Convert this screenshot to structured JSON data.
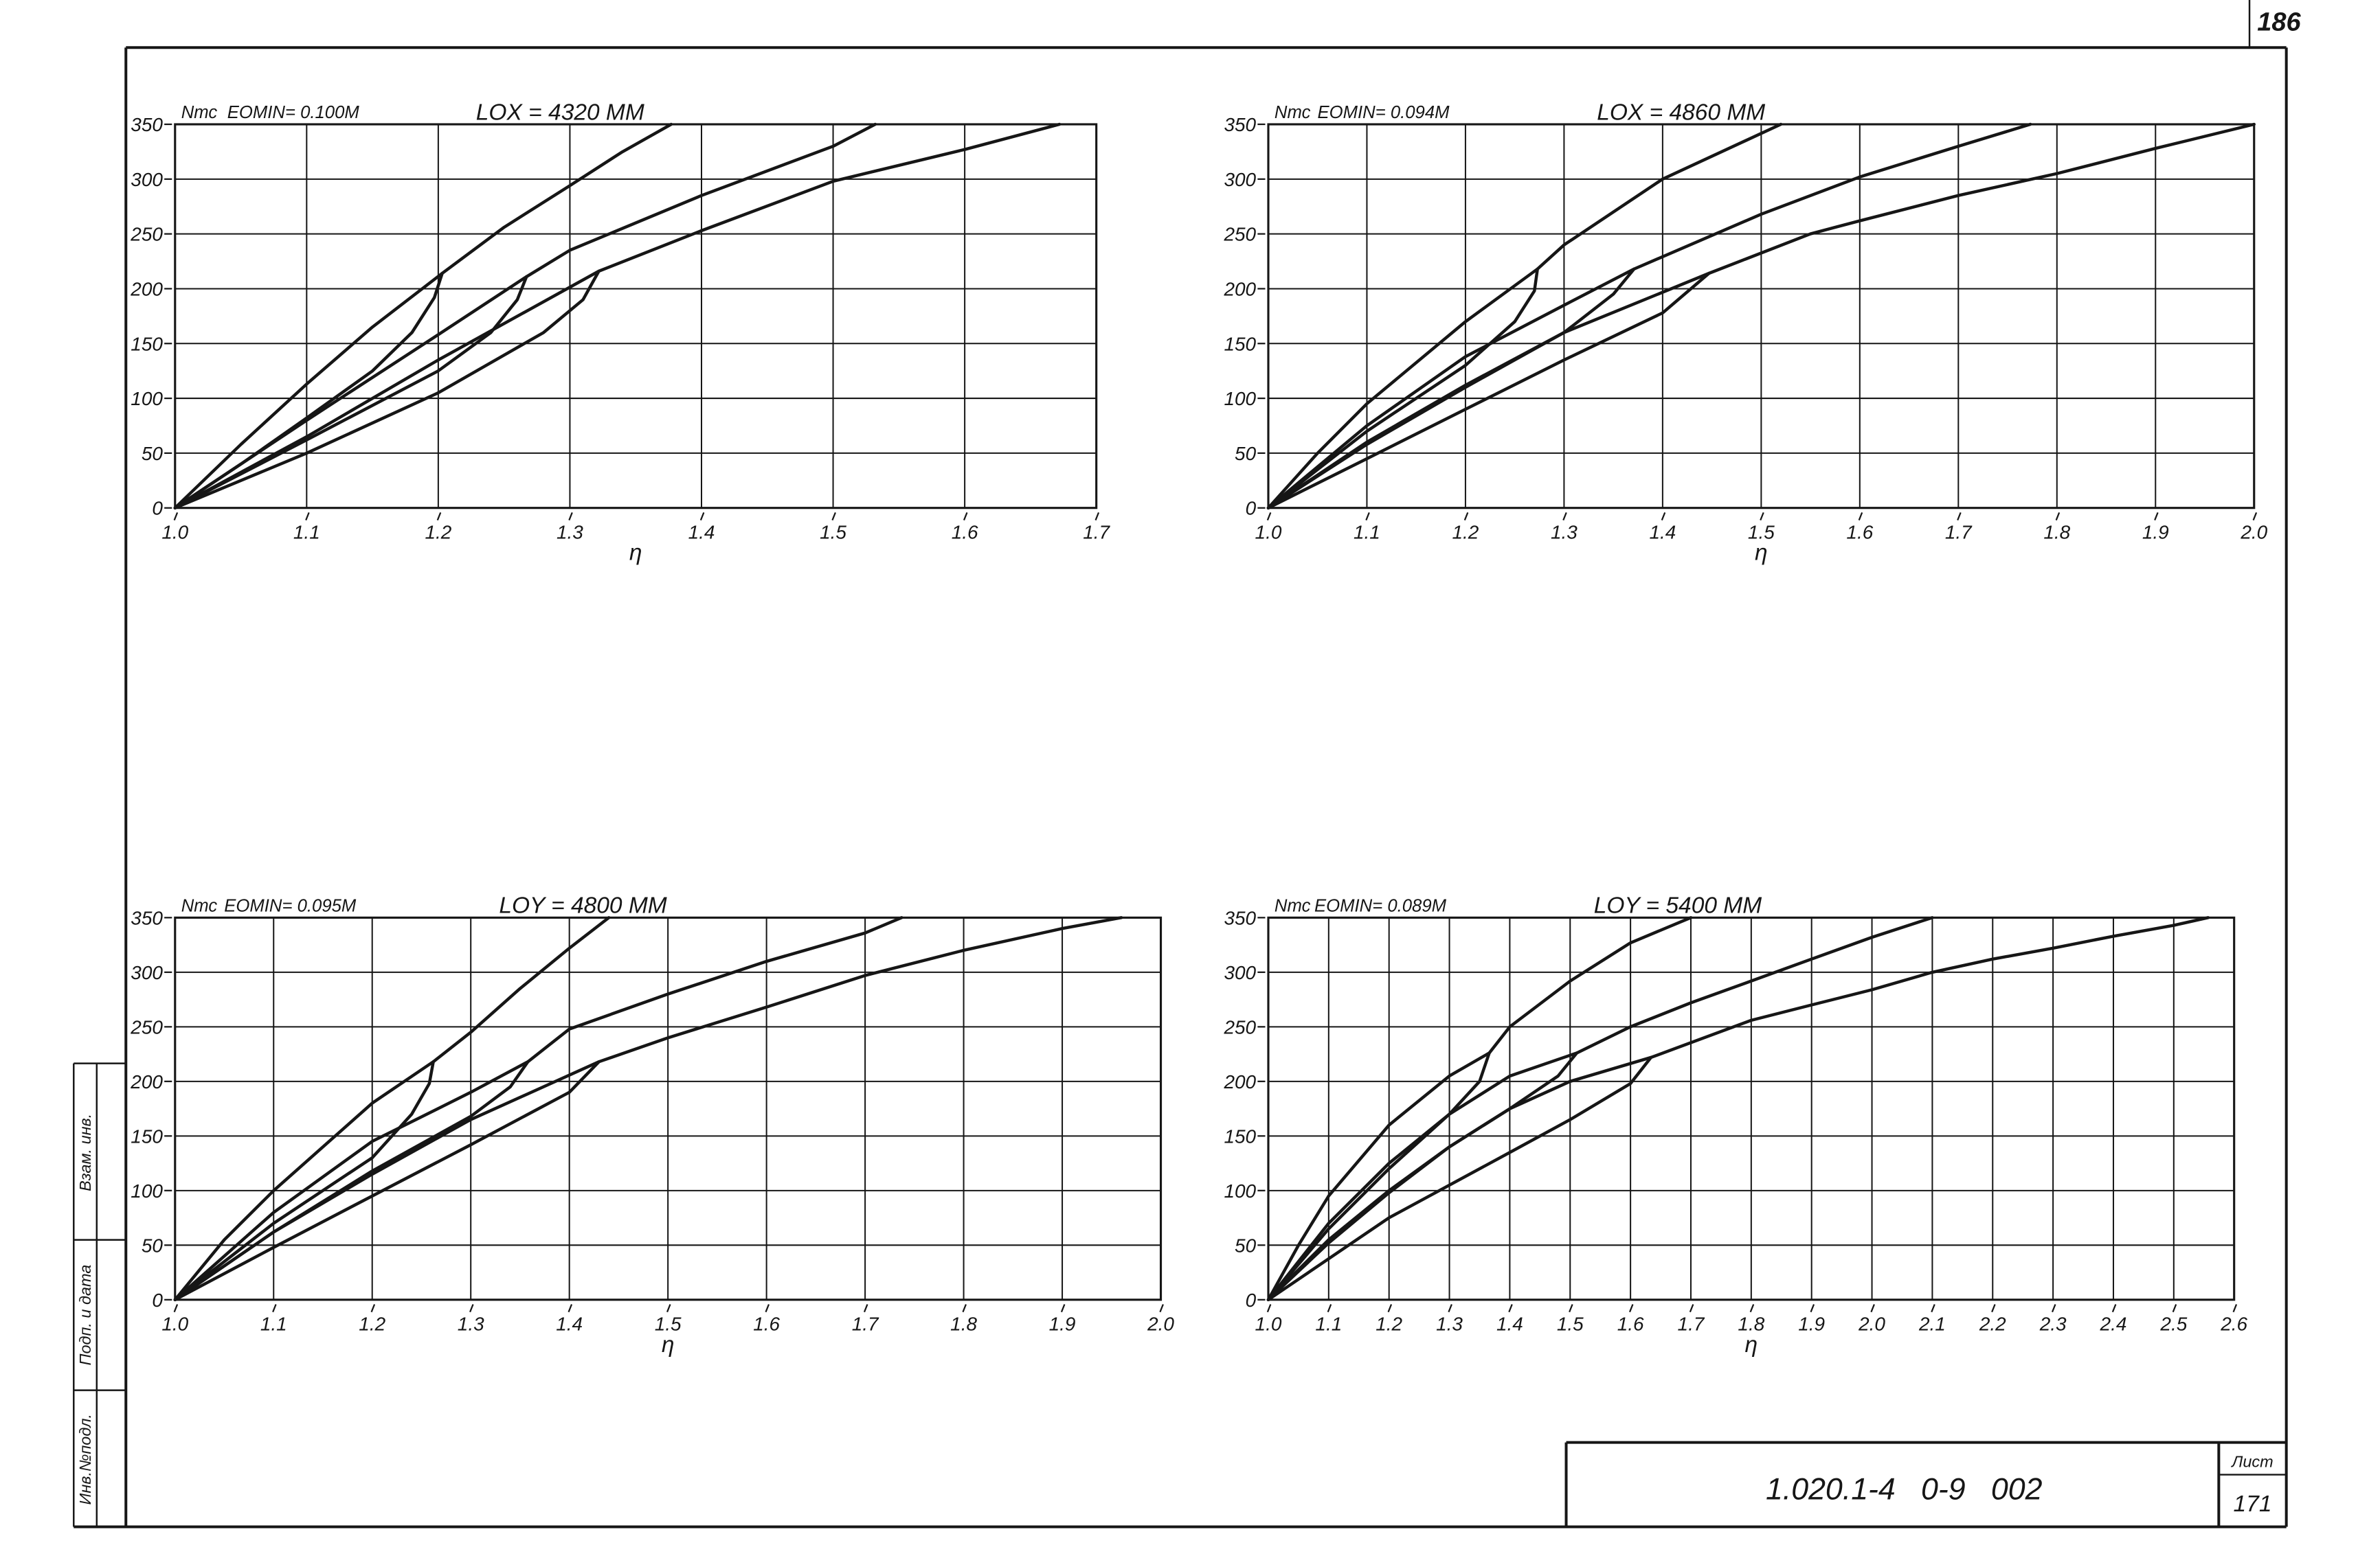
{
  "sheet": {
    "page_number": "186",
    "stamp": {
      "replaced_inv": "Взам. инв.",
      "signature_date": "Подп. и дата",
      "inv_no": "Инв.№подл."
    },
    "title_block": {
      "code": "1.020.1-4   0-9   002",
      "sheet_label": "Лист",
      "sheet_number": "171"
    }
  },
  "colors": {
    "ink": "#161616",
    "paper": "#ffffff"
  },
  "chart_data": [
    {
      "type": "line",
      "ylabel": "Nтс",
      "title": "EOMIN= 0.100M",
      "subtitle": "LOX = 4320 MM",
      "xlabel": "η",
      "xlim": [
        1.0,
        1.7
      ],
      "ylim": [
        0,
        350
      ],
      "grid": true,
      "x_ticks": [
        "1.0",
        "1.1",
        "1.2",
        "1.3",
        "1.4",
        "1.5",
        "1.6",
        "1.7"
      ],
      "y_ticks": [
        "0",
        "50",
        "100",
        "150",
        "200",
        "250",
        "300",
        "350"
      ],
      "series": [
        {
          "points": [
            [
              1.0,
              0
            ],
            [
              1.05,
              58
            ],
            [
              1.1,
              113
            ],
            [
              1.15,
              165
            ],
            [
              1.203,
              214
            ],
            [
              1.25,
              256
            ],
            [
              1.3,
              294
            ],
            [
              1.34,
              325
            ],
            [
              1.377,
              350
            ]
          ]
        },
        {
          "points": [
            [
              1.0,
              0
            ],
            [
              1.05,
              40
            ],
            [
              1.1,
              82
            ],
            [
              1.15,
              125
            ],
            [
              1.18,
              160
            ],
            [
              1.197,
              192
            ],
            [
              1.203,
              214
            ]
          ]
        },
        {
          "points": [
            [
              1.0,
              0
            ],
            [
              1.1,
              80
            ],
            [
              1.2,
              158
            ],
            [
              1.267,
              211
            ],
            [
              1.3,
              235
            ],
            [
              1.4,
              285
            ],
            [
              1.5,
              330
            ],
            [
              1.532,
              350
            ]
          ]
        },
        {
          "points": [
            [
              1.0,
              0
            ],
            [
              1.1,
              62
            ],
            [
              1.2,
              125
            ],
            [
              1.24,
              160
            ],
            [
              1.26,
              190
            ],
            [
              1.267,
              211
            ]
          ]
        },
        {
          "points": [
            [
              1.0,
              0
            ],
            [
              1.1,
              65
            ],
            [
              1.2,
              135
            ],
            [
              1.322,
              216
            ],
            [
              1.4,
              253
            ],
            [
              1.5,
              298
            ],
            [
              1.6,
              327
            ],
            [
              1.672,
              350
            ]
          ]
        },
        {
          "points": [
            [
              1.0,
              0
            ],
            [
              1.1,
              50
            ],
            [
              1.2,
              105
            ],
            [
              1.28,
              160
            ],
            [
              1.31,
              190
            ],
            [
              1.322,
              216
            ]
          ]
        }
      ]
    },
    {
      "type": "line",
      "ylabel": "Nтс",
      "title": "EOMIN= 0.094M",
      "subtitle": "LOX = 4860 MM",
      "xlabel": "η",
      "xlim": [
        1.0,
        2.0
      ],
      "ylim": [
        0,
        350
      ],
      "grid": true,
      "x_ticks": [
        "1.0",
        "1.1",
        "1.2",
        "1.3",
        "1.4",
        "1.5",
        "1.6",
        "1.7",
        "1.8",
        "1.9",
        "2.0"
      ],
      "y_ticks": [
        "0",
        "50",
        "100",
        "150",
        "200",
        "250",
        "300",
        "350"
      ],
      "series": [
        {
          "points": [
            [
              1.0,
              0
            ],
            [
              1.05,
              50
            ],
            [
              1.1,
              95
            ],
            [
              1.2,
              170
            ],
            [
              1.273,
              218
            ],
            [
              1.3,
              240
            ],
            [
              1.4,
              300
            ],
            [
              1.52,
              350
            ]
          ]
        },
        {
          "points": [
            [
              1.0,
              0
            ],
            [
              1.1,
              70
            ],
            [
              1.2,
              130
            ],
            [
              1.25,
              170
            ],
            [
              1.27,
              198
            ],
            [
              1.273,
              218
            ]
          ]
        },
        {
          "points": [
            [
              1.0,
              0
            ],
            [
              1.1,
              75
            ],
            [
              1.2,
              138
            ],
            [
              1.3,
              185
            ],
            [
              1.371,
              218
            ],
            [
              1.5,
              268
            ],
            [
              1.6,
              302
            ],
            [
              1.7,
              330
            ],
            [
              1.773,
              350
            ]
          ]
        },
        {
          "points": [
            [
              1.0,
              0
            ],
            [
              1.1,
              58
            ],
            [
              1.2,
              110
            ],
            [
              1.3,
              160
            ],
            [
              1.35,
              195
            ],
            [
              1.371,
              218
            ]
          ]
        },
        {
          "points": [
            [
              1.0,
              0
            ],
            [
              1.1,
              60
            ],
            [
              1.2,
              112
            ],
            [
              1.3,
              160
            ],
            [
              1.447,
              214
            ],
            [
              1.55,
              250
            ],
            [
              1.6,
              262
            ],
            [
              1.7,
              285
            ],
            [
              1.8,
              305
            ],
            [
              1.9,
              328
            ],
            [
              2.0,
              350
            ]
          ]
        },
        {
          "points": [
            [
              1.0,
              0
            ],
            [
              1.1,
              45
            ],
            [
              1.2,
              90
            ],
            [
              1.3,
              135
            ],
            [
              1.4,
              178
            ],
            [
              1.447,
              214
            ]
          ]
        }
      ]
    },
    {
      "type": "line",
      "ylabel": "Nтс",
      "title": "EOMIN= 0.095M",
      "subtitle": "LOY = 4800 MM",
      "xlabel": "η",
      "xlim": [
        1.0,
        2.0
      ],
      "ylim": [
        0,
        350
      ],
      "grid": true,
      "x_ticks": [
        "1.0",
        "1.1",
        "1.2",
        "1.3",
        "1.4",
        "1.5",
        "1.6",
        "1.7",
        "1.8",
        "1.9",
        "2.0"
      ],
      "y_ticks": [
        "0",
        "50",
        "100",
        "150",
        "200",
        "250",
        "300",
        "350"
      ],
      "series": [
        {
          "points": [
            [
              1.0,
              0
            ],
            [
              1.05,
              55
            ],
            [
              1.1,
              100
            ],
            [
              1.2,
              180
            ],
            [
              1.262,
              218
            ],
            [
              1.3,
              245
            ],
            [
              1.35,
              285
            ],
            [
              1.4,
              322
            ],
            [
              1.44,
              350
            ]
          ]
        },
        {
          "points": [
            [
              1.0,
              0
            ],
            [
              1.1,
              70
            ],
            [
              1.2,
              130
            ],
            [
              1.24,
              170
            ],
            [
              1.258,
              198
            ],
            [
              1.262,
              218
            ]
          ]
        },
        {
          "points": [
            [
              1.0,
              0
            ],
            [
              1.1,
              80
            ],
            [
              1.2,
              145
            ],
            [
              1.3,
              190
            ],
            [
              1.358,
              218
            ],
            [
              1.4,
              248
            ],
            [
              1.5,
              280
            ],
            [
              1.6,
              310
            ],
            [
              1.7,
              336
            ],
            [
              1.737,
              350
            ]
          ]
        },
        {
          "points": [
            [
              1.0,
              0
            ],
            [
              1.1,
              62
            ],
            [
              1.2,
              118
            ],
            [
              1.3,
              168
            ],
            [
              1.34,
              195
            ],
            [
              1.358,
              218
            ]
          ]
        },
        {
          "points": [
            [
              1.0,
              0
            ],
            [
              1.1,
              62
            ],
            [
              1.2,
              115
            ],
            [
              1.3,
              165
            ],
            [
              1.43,
              218
            ],
            [
              1.5,
              240
            ],
            [
              1.6,
              268
            ],
            [
              1.7,
              297
            ],
            [
              1.8,
              320
            ],
            [
              1.9,
              340
            ],
            [
              1.96,
              350
            ]
          ]
        },
        {
          "points": [
            [
              1.0,
              0
            ],
            [
              1.1,
              48
            ],
            [
              1.2,
              95
            ],
            [
              1.3,
              142
            ],
            [
              1.4,
              190
            ],
            [
              1.43,
              218
            ]
          ]
        }
      ]
    },
    {
      "type": "line",
      "ylabel": "Nтс",
      "title": "EOMIN= 0.089M",
      "subtitle": "LOY = 5400 MM",
      "xlabel": "η",
      "xlim": [
        1.0,
        2.6
      ],
      "ylim": [
        0,
        350
      ],
      "grid": true,
      "x_ticks": [
        "1.0",
        "1.1",
        "1.2",
        "1.3",
        "1.4",
        "1.5",
        "1.6",
        "1.7",
        "1.8",
        "1.9",
        "2.0",
        "2.1",
        "2.2",
        "2.3",
        "2.4",
        "2.5",
        "2.6"
      ],
      "y_ticks": [
        "0",
        "50",
        "100",
        "150",
        "200",
        "250",
        "300",
        "350"
      ],
      "series": [
        {
          "points": [
            [
              1.0,
              0
            ],
            [
              1.05,
              50
            ],
            [
              1.1,
              95
            ],
            [
              1.2,
              160
            ],
            [
              1.3,
              205
            ],
            [
              1.366,
              226
            ],
            [
              1.4,
              250
            ],
            [
              1.5,
              292
            ],
            [
              1.6,
              327
            ],
            [
              1.7,
              350
            ]
          ]
        },
        {
          "points": [
            [
              1.0,
              0
            ],
            [
              1.1,
              65
            ],
            [
              1.2,
              120
            ],
            [
              1.3,
              170
            ],
            [
              1.35,
              200
            ],
            [
              1.366,
              226
            ]
          ]
        },
        {
          "points": [
            [
              1.0,
              0
            ],
            [
              1.1,
              70
            ],
            [
              1.2,
              125
            ],
            [
              1.3,
              170
            ],
            [
              1.4,
              205
            ],
            [
              1.511,
              226
            ],
            [
              1.6,
              250
            ],
            [
              1.7,
              272
            ],
            [
              1.8,
              292
            ],
            [
              1.9,
              312
            ],
            [
              2.0,
              332
            ],
            [
              2.1,
              350
            ]
          ]
        },
        {
          "points": [
            [
              1.0,
              0
            ],
            [
              1.1,
              55
            ],
            [
              1.2,
              100
            ],
            [
              1.3,
              140
            ],
            [
              1.4,
              175
            ],
            [
              1.48,
              205
            ],
            [
              1.511,
              226
            ]
          ]
        },
        {
          "points": [
            [
              1.0,
              0
            ],
            [
              1.1,
              52
            ],
            [
              1.2,
              98
            ],
            [
              1.3,
              140
            ],
            [
              1.4,
              175
            ],
            [
              1.5,
              200
            ],
            [
              1.634,
              222
            ],
            [
              1.8,
              256
            ],
            [
              1.9,
              270
            ],
            [
              2.0,
              284
            ],
            [
              2.1,
              300
            ],
            [
              2.2,
              312
            ],
            [
              2.3,
              322
            ],
            [
              2.4,
              333
            ],
            [
              2.5,
              343
            ],
            [
              2.557,
              350
            ]
          ]
        },
        {
          "points": [
            [
              1.0,
              0
            ],
            [
              1.2,
              75
            ],
            [
              1.4,
              135
            ],
            [
              1.5,
              165
            ],
            [
              1.6,
              198
            ],
            [
              1.634,
              222
            ]
          ]
        }
      ]
    }
  ]
}
